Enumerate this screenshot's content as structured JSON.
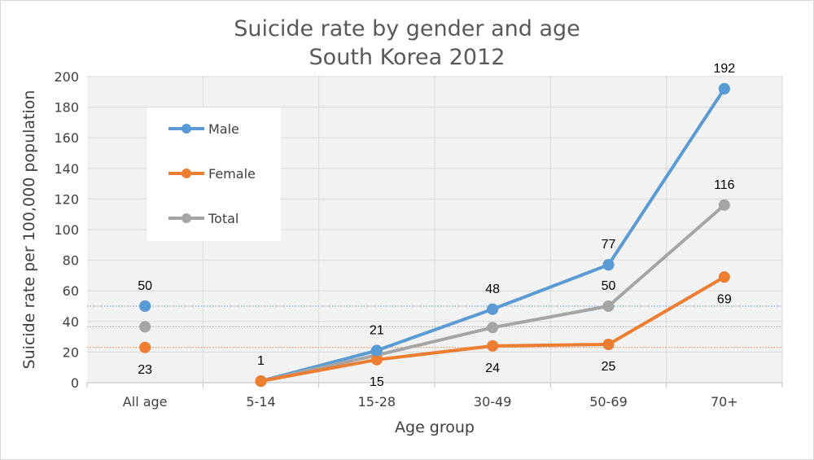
{
  "chart_data": {
    "type": "line",
    "title": [
      "Suicide rate by gender and age",
      "South Korea 2012"
    ],
    "xlabel": "Age group",
    "ylabel": "Suicide rate per 100,000 population",
    "ylim": [
      0,
      200
    ],
    "ytick_step": 20,
    "grid": true,
    "legend_position": "top-left",
    "categories": [
      "All age",
      "5-14",
      "15-28",
      "30-49",
      "50-69",
      "70+"
    ],
    "series": [
      {
        "name": "Male",
        "color": "#5B9BD5",
        "values": [
          50,
          1,
          21,
          48,
          77,
          192
        ],
        "labels": [
          "50",
          "",
          "21",
          "48",
          "77",
          "192"
        ],
        "label_side": [
          "above",
          "",
          "above",
          "above",
          "above",
          "above"
        ]
      },
      {
        "name": "Female",
        "color": "#ED7D31",
        "values": [
          23,
          1,
          15,
          24,
          25,
          69
        ],
        "labels": [
          "23",
          "",
          "15",
          "24",
          "25",
          "69"
        ],
        "label_side": [
          "below",
          "",
          "below",
          "below",
          "below",
          "below"
        ]
      },
      {
        "name": "Total",
        "color": "#A5A5A5",
        "values": [
          36.5,
          1,
          18,
          36,
          50,
          116
        ],
        "labels": [
          "",
          "1",
          "",
          "",
          "50",
          "116"
        ],
        "label_side": [
          "",
          "above",
          "",
          "",
          "above",
          "above"
        ]
      }
    ],
    "reference_lines": [
      {
        "value": 50,
        "color": "#5B9BD5"
      },
      {
        "value": 36.5,
        "color": "#A5A5A5"
      },
      {
        "value": 23,
        "color": "#ED7D31"
      }
    ]
  }
}
